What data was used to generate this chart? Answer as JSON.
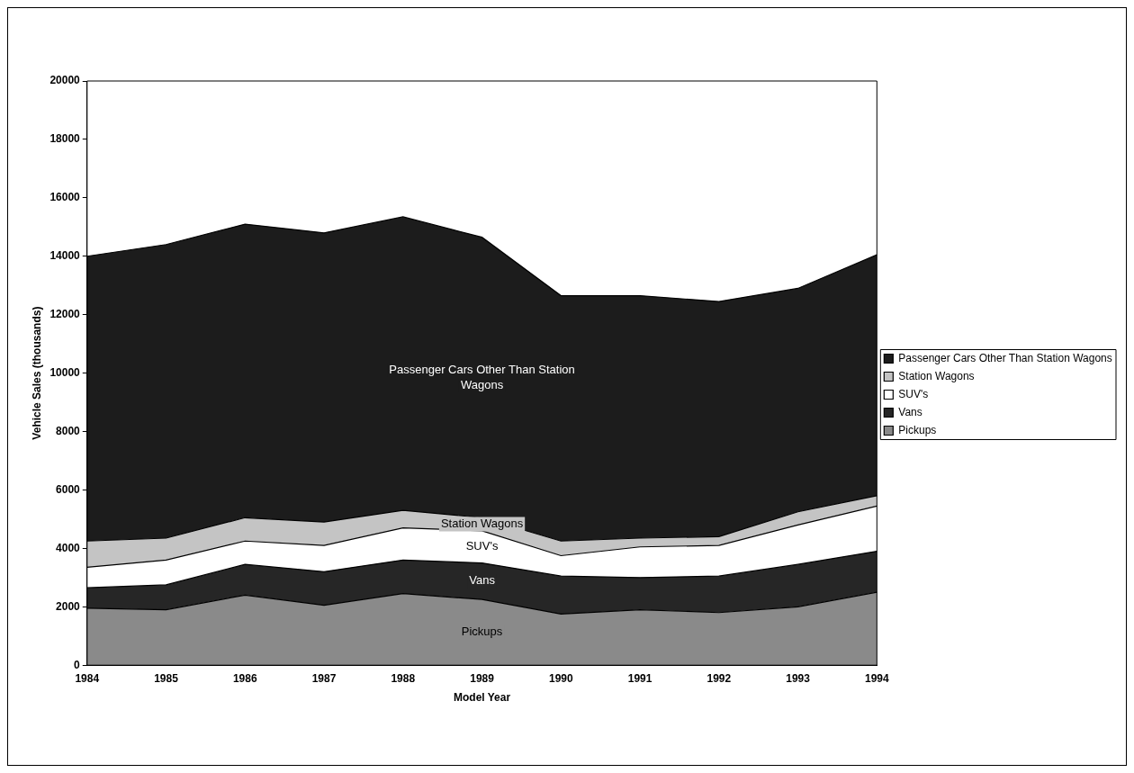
{
  "chart_data": {
    "type": "area",
    "xlabel": "Model Year",
    "ylabel": "Vehicle Sales (thousands)",
    "categories": [
      "1984",
      "1985",
      "1986",
      "1987",
      "1988",
      "1989",
      "1990",
      "1991",
      "1992",
      "1993",
      "1994"
    ],
    "stacked": true,
    "ylim": [
      0,
      20000
    ],
    "yticks": [
      0,
      2000,
      4000,
      6000,
      8000,
      10000,
      12000,
      14000,
      16000,
      18000,
      20000
    ],
    "grid": false,
    "legend": "right",
    "series": [
      {
        "name": "Pickups",
        "color": "#8a8a8a",
        "values": [
          1950,
          1900,
          2400,
          2050,
          2450,
          2250,
          1750,
          1900,
          1800,
          2000,
          2500
        ]
      },
      {
        "name": "Vans",
        "color": "#262626",
        "values": [
          700,
          850,
          1050,
          1150,
          1150,
          1250,
          1300,
          1100,
          1250,
          1450,
          1400
        ]
      },
      {
        "name": "SUV's",
        "color": "#ffffff",
        "values": [
          700,
          850,
          800,
          900,
          1100,
          1100,
          700,
          1050,
          1050,
          1350,
          1550
        ]
      },
      {
        "name": "Station Wagons",
        "color": "#c4c4c4",
        "values": [
          900,
          750,
          800,
          800,
          600,
          450,
          500,
          300,
          300,
          450,
          350
        ]
      },
      {
        "name": "Passenger Cars Other Than Station Wagons",
        "color": "#1c1c1c",
        "values": [
          9750,
          10050,
          10050,
          9900,
          10050,
          9600,
          8400,
          8300,
          8050,
          7650,
          8250
        ]
      }
    ]
  }
}
